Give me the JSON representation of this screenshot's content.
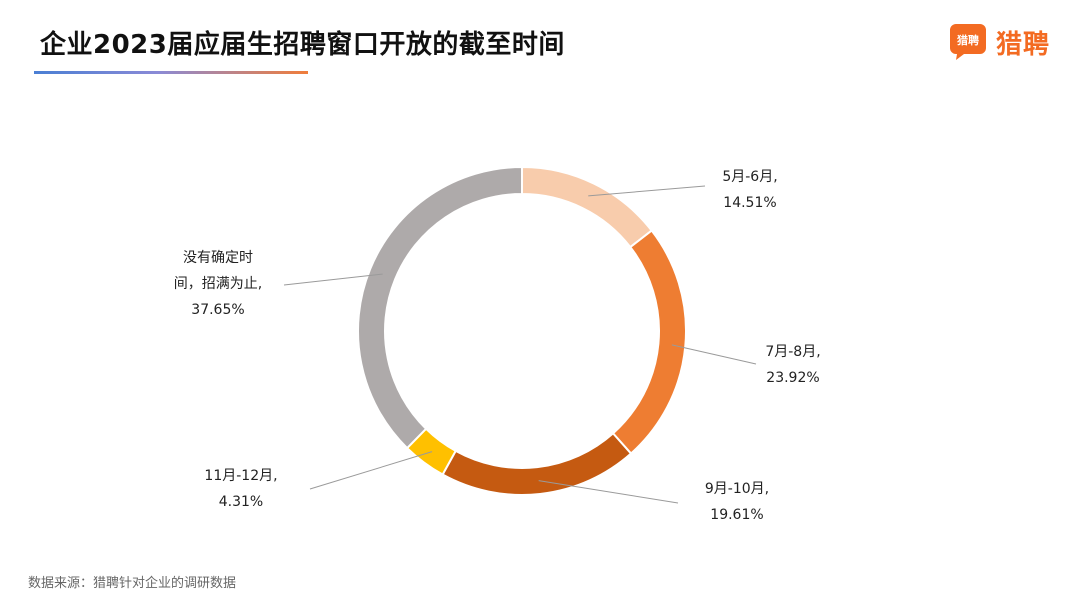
{
  "header": {
    "title": "企业2023届应届生招聘窗口开放的截至时间"
  },
  "logo": {
    "icon_text": "猎聘",
    "text": "猎聘",
    "color": "#f36b22"
  },
  "footer": {
    "source": "数据来源：猎聘针对企业的调研数据"
  },
  "chart_data": {
    "type": "pie",
    "style": "donut",
    "title": "企业2023届应届生招聘窗口开放的截至时间",
    "slices": [
      {
        "label_lines": [
          "5月-6月,",
          "14.51%"
        ],
        "value": 14.51,
        "color": "#f8ccac"
      },
      {
        "label_lines": [
          "7月-8月,",
          "23.92%"
        ],
        "value": 23.92,
        "color": "#ee7d32"
      },
      {
        "label_lines": [
          "9月-10月,",
          "19.61%"
        ],
        "value": 19.61,
        "color": "#c55a11"
      },
      {
        "label_lines": [
          "11月-12月,",
          "4.31%"
        ],
        "value": 4.31,
        "color": "#ffc000"
      },
      {
        "label_lines": [
          "没有确定时",
          "间，招满为止,",
          "37.65%"
        ],
        "value": 37.65,
        "color": "#aeaaaa"
      }
    ],
    "start_angle": "12 o'clock",
    "direction": "clockwise",
    "legend": "none"
  }
}
